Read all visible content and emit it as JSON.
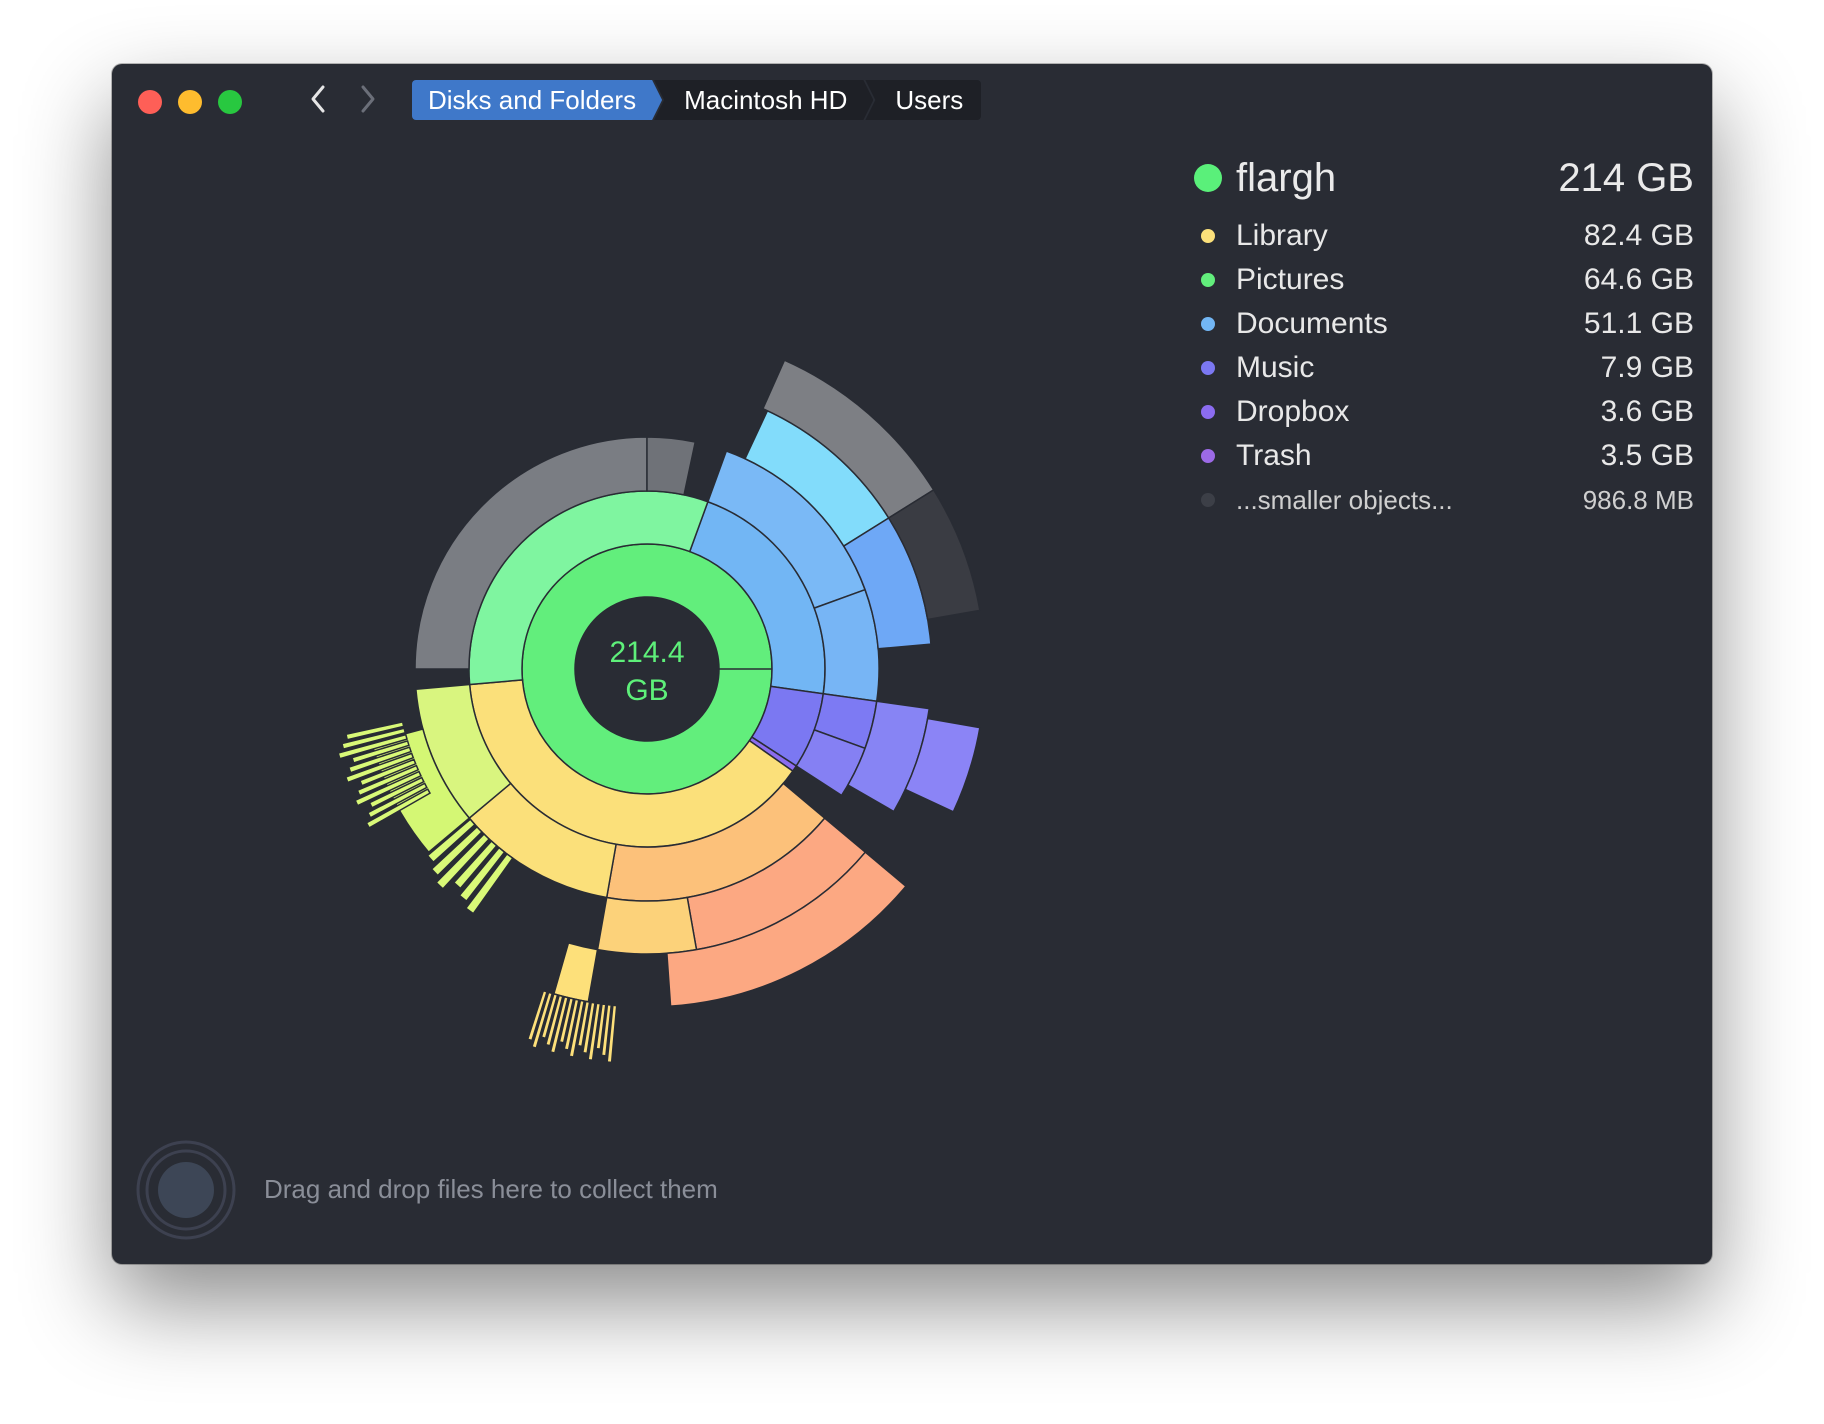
{
  "breadcrumb": {
    "items": [
      "Disks and Folders",
      "Macintosh HD",
      "Users"
    ]
  },
  "center": {
    "value": "214.4",
    "unit": "GB"
  },
  "legend": {
    "header": {
      "name": "flargh",
      "size": "214 GB",
      "color": "#5af07a"
    },
    "items": [
      {
        "name": "Library",
        "size": "82.4 GB",
        "color": "#fbe07a"
      },
      {
        "name": "Pictures",
        "size": "64.6 GB",
        "color": "#62ee7c"
      },
      {
        "name": "Documents",
        "size": "51.1 GB",
        "color": "#72b6f4"
      },
      {
        "name": "Music",
        "size": "7.9 GB",
        "color": "#7b78f2"
      },
      {
        "name": "Dropbox",
        "size": "3.6 GB",
        "color": "#8b6cf0"
      },
      {
        "name": "Trash",
        "size": "3.5 GB",
        "color": "#9c6ae6"
      },
      {
        "name": "...smaller objects...",
        "size": "986.8  MB",
        "color": "#3c3f47"
      }
    ]
  },
  "dropzone": {
    "text": "Drag and drop files here to collect them"
  },
  "icons": {
    "back": "chevron-left-icon",
    "forward": "chevron-right-icon",
    "dropzone": "collector-ring-icon"
  }
}
